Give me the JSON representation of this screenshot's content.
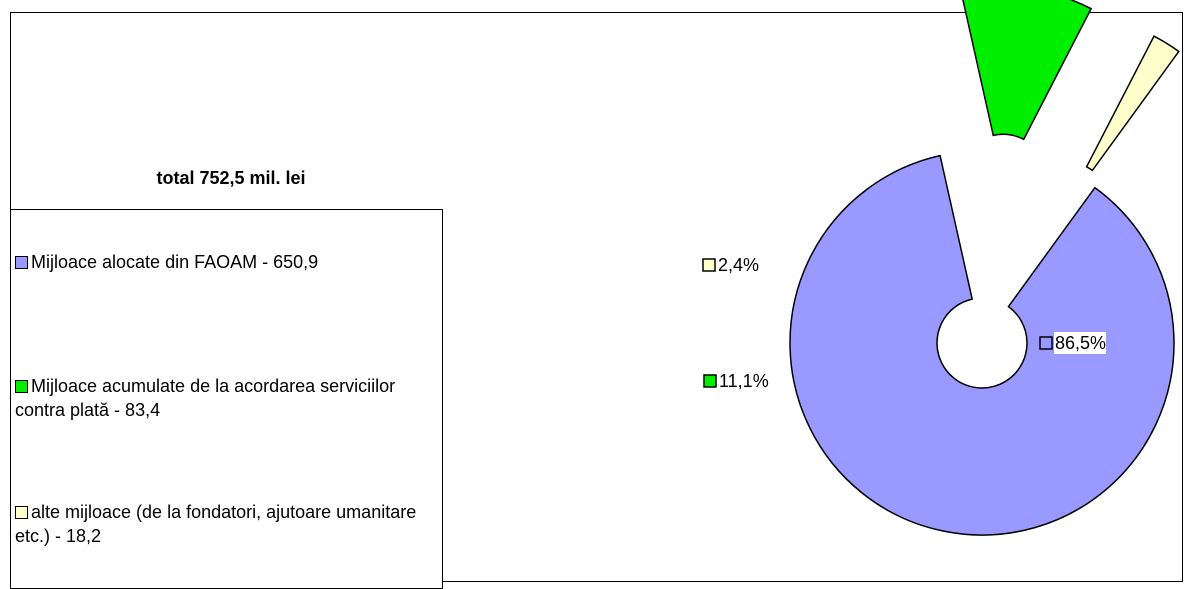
{
  "chart_data": {
    "type": "pie",
    "title": "total 752,5 mil. lei",
    "legend_position": "left",
    "slices": [
      {
        "name": "Mijloace alocate din FAOAM - 650,9",
        "value": 650.9,
        "label": "86,5%",
        "color": "#9999ff"
      },
      {
        "name": "Mijloace acumulate de la acordarea serviciilor contra plată - 83,4",
        "value": 83.4,
        "label": "11,1%",
        "color": "#00ee00"
      },
      {
        "name": "alte mijloace (de la fondatori, ajutoare umanitare etc.) - 18,2",
        "value": 18.2,
        "label": "2,4%",
        "color": "#ffffcc"
      }
    ]
  }
}
